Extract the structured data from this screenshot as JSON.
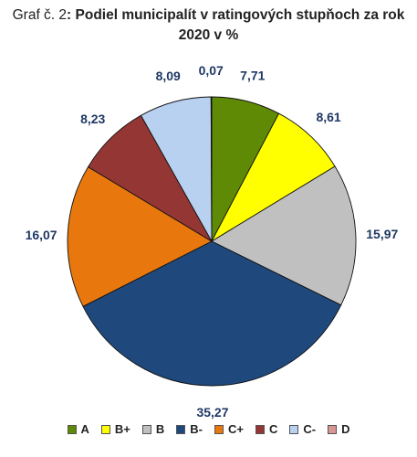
{
  "chart_data": {
    "type": "pie",
    "title_prefix": "Graf č. 2",
    "title": ": Podiel municipalít v ratingových stupňoch za rok 2020 v %",
    "legend_position": "bottom",
    "categories": [
      "A",
      "B+",
      "B",
      "B-",
      "C+",
      "C",
      "C-",
      "D"
    ],
    "values": [
      7.71,
      8.61,
      15.97,
      35.27,
      16.07,
      8.23,
      8.09,
      0.07
    ],
    "labels": [
      "7,71",
      "8,61",
      "15,97",
      "35,27",
      "16,07",
      "8,23",
      "8,09",
      "0,07"
    ],
    "colors": [
      "#5F8A06",
      "#FFFF00",
      "#C0C0C0",
      "#1F497D",
      "#E8780E",
      "#943634",
      "#B8D1F0",
      "#D99594"
    ],
    "label_color": "#1F3864"
  }
}
